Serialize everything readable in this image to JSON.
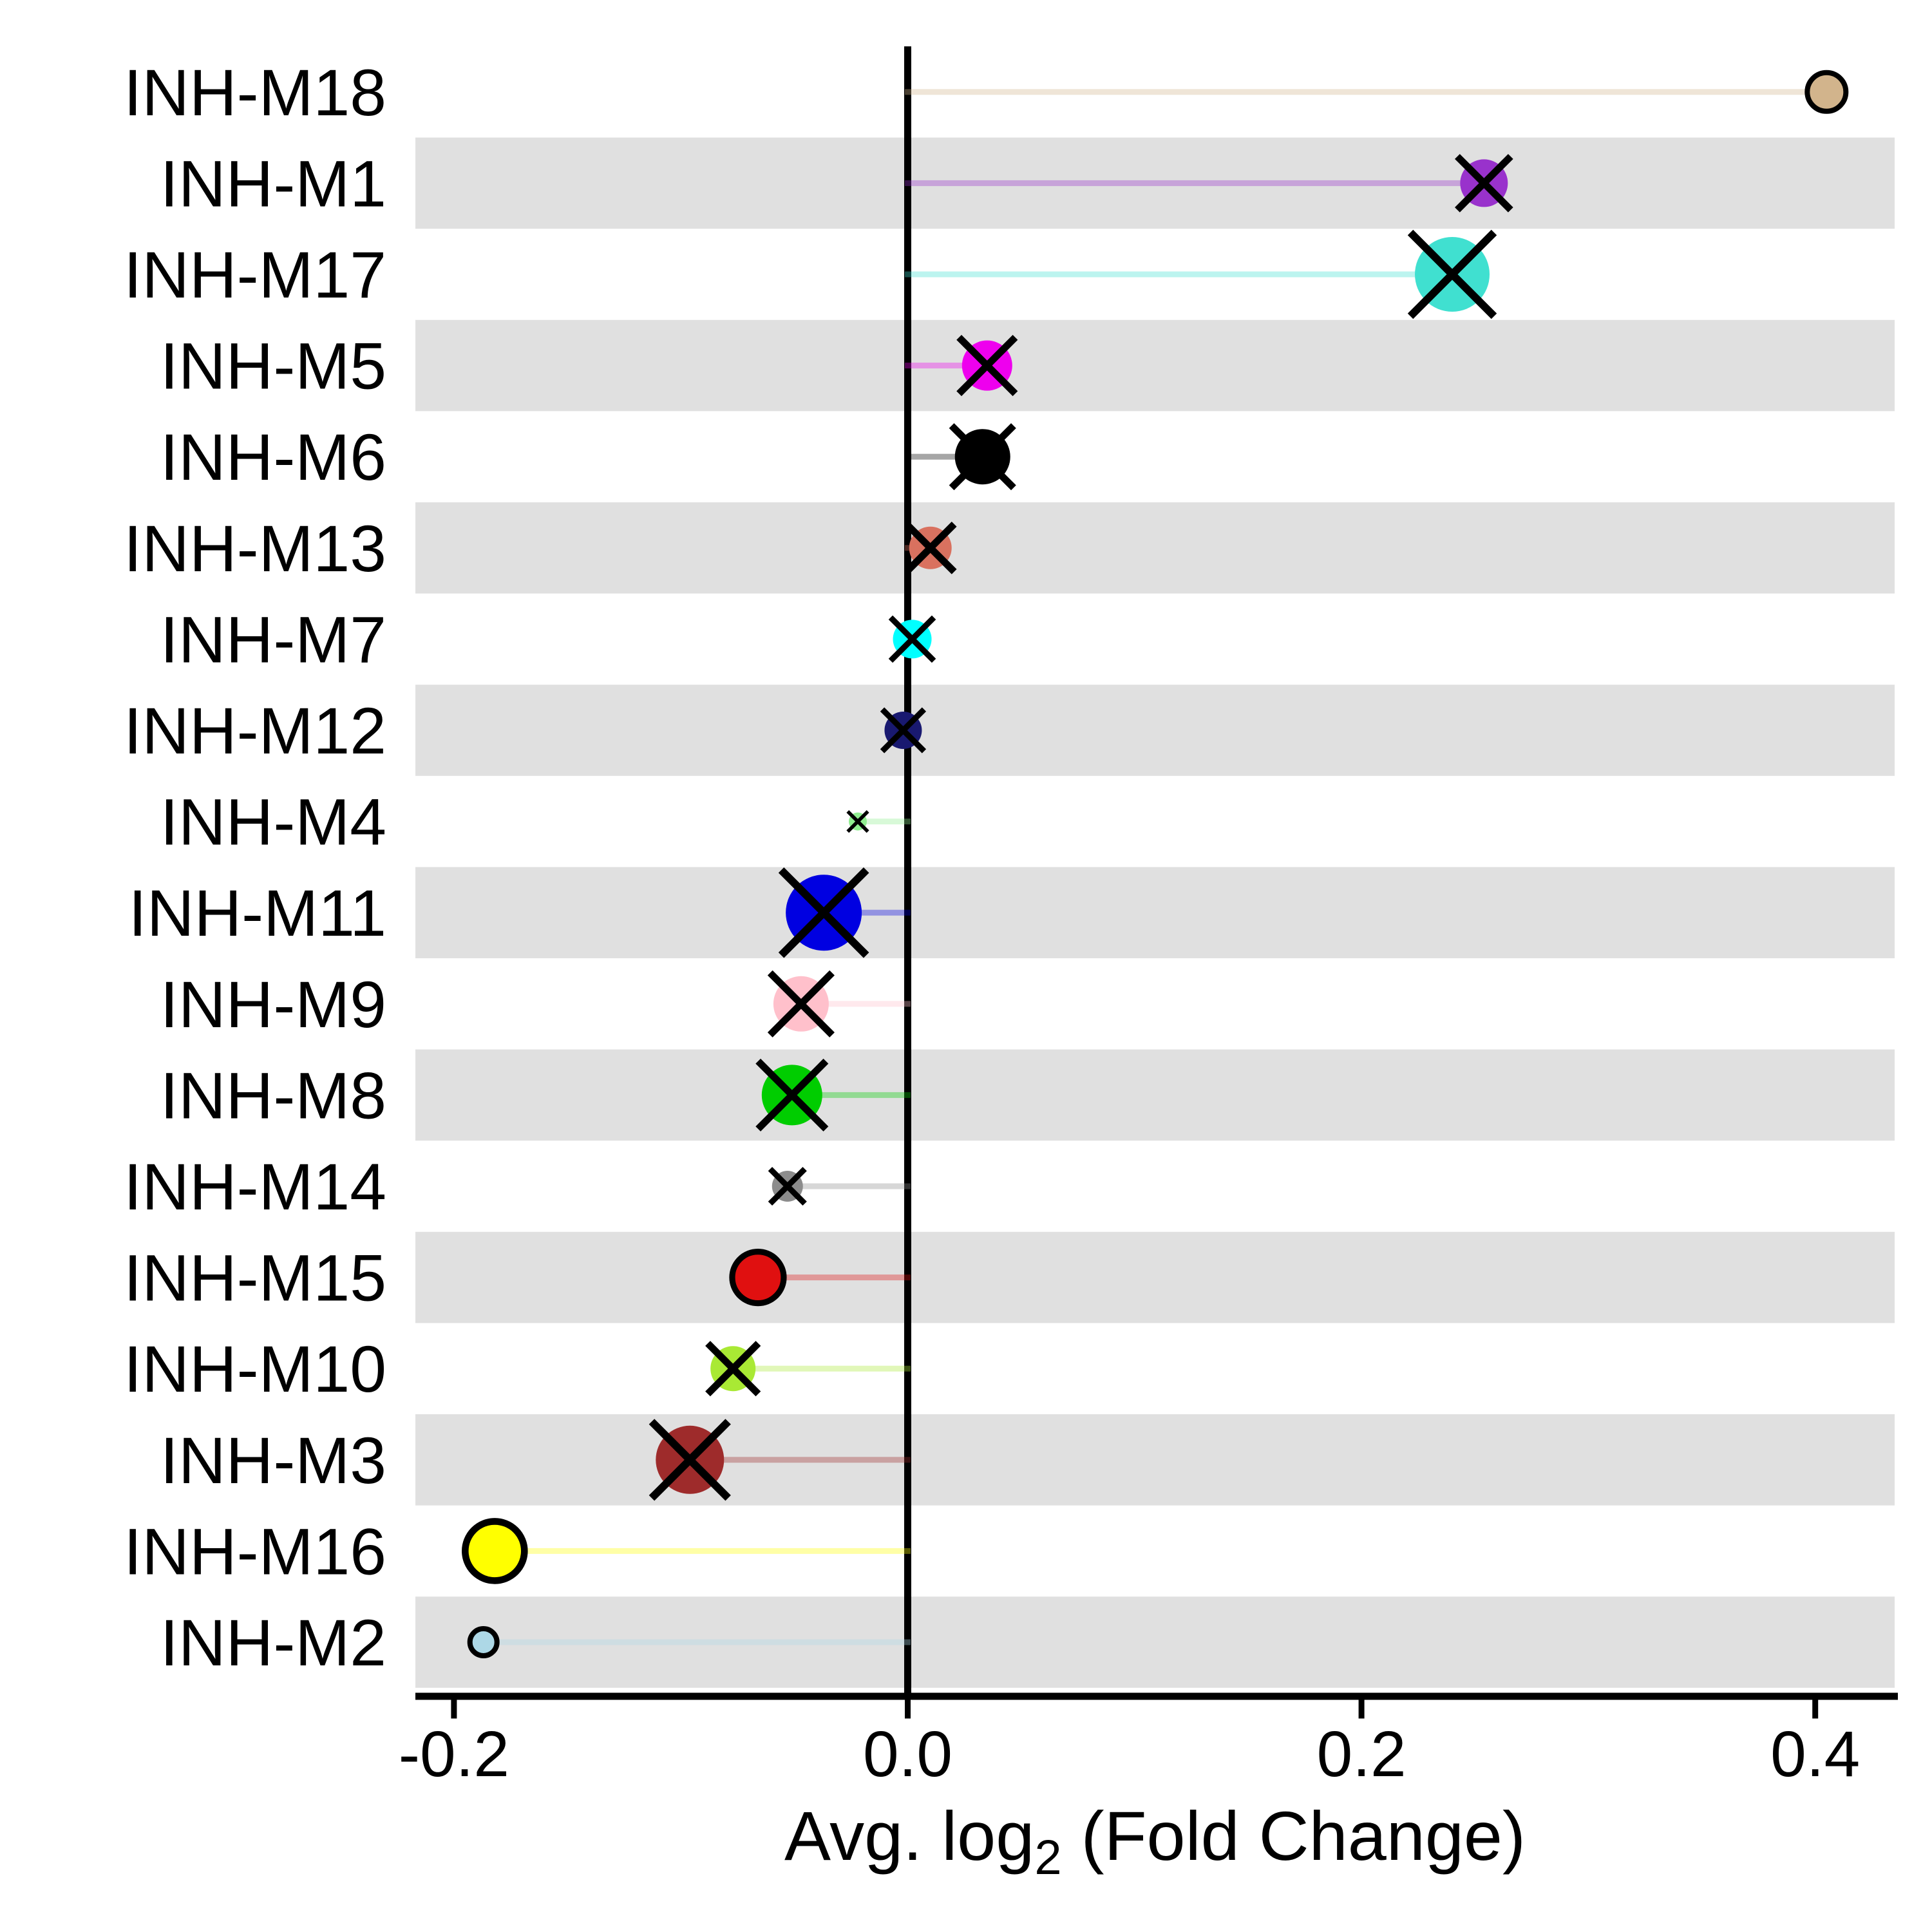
{
  "chart_data": {
    "type": "lollipop-dot",
    "title": "",
    "xlabel_parts": {
      "prefix": "Avg. log",
      "subscript": "2",
      "suffix": " (Fold Change)"
    },
    "xlim": [
      -0.217,
      0.435
    ],
    "x_ticks": [
      {
        "value": -0.2,
        "label": "-0.2"
      },
      {
        "value": 0.0,
        "label": "0.0"
      },
      {
        "value": 0.2,
        "label": "0.2"
      },
      {
        "value": 0.4,
        "label": "0.4"
      }
    ],
    "zero_line": {
      "value": 0.0,
      "color": "#000000"
    },
    "band_color": "#e0e0e0",
    "stem_alpha": 0.35,
    "legend": "none",
    "categories_note": "rows ordered top to bottom by descending value; marker 'x' = black cross over dot, 'ring' = black outlined dot",
    "rows": [
      {
        "label": "INH-M18",
        "value": 0.405,
        "color": "#d2b48c",
        "radius": 30,
        "marker": "ring"
      },
      {
        "label": "INH-M1",
        "value": 0.254,
        "color": "#9932cc",
        "radius": 37,
        "marker": "x"
      },
      {
        "label": "INH-M17",
        "value": 0.24,
        "color": "#40e0d0",
        "radius": 58,
        "marker": "x"
      },
      {
        "label": "INH-M5",
        "value": 0.035,
        "color": "#ee00ee",
        "radius": 39,
        "marker": "x"
      },
      {
        "label": "INH-M6",
        "value": 0.033,
        "color": "#000000",
        "radius": 43,
        "marker": "x"
      },
      {
        "label": "INH-M13",
        "value": 0.01,
        "color": "#d9715f",
        "radius": 33,
        "marker": "x"
      },
      {
        "label": "INH-M7",
        "value": 0.002,
        "color": "#00ffff",
        "radius": 30,
        "marker": "x"
      },
      {
        "label": "INH-M12",
        "value": -0.002,
        "color": "#191970",
        "radius": 29,
        "marker": "x"
      },
      {
        "label": "INH-M4",
        "value": -0.022,
        "color": "#90ee90",
        "radius": 14,
        "marker": "x"
      },
      {
        "label": "INH-M11",
        "value": -0.037,
        "color": "#0000e1",
        "radius": 59,
        "marker": "x"
      },
      {
        "label": "INH-M9",
        "value": -0.047,
        "color": "#ffc0cb",
        "radius": 43,
        "marker": "x"
      },
      {
        "label": "INH-M8",
        "value": -0.051,
        "color": "#00cd00",
        "radius": 47,
        "marker": "x"
      },
      {
        "label": "INH-M14",
        "value": -0.053,
        "color": "#8c8c8c",
        "radius": 24,
        "marker": "x"
      },
      {
        "label": "INH-M15",
        "value": -0.066,
        "color": "#e01010",
        "radius": 40,
        "marker": "ring"
      },
      {
        "label": "INH-M10",
        "value": -0.077,
        "color": "#a9e934",
        "radius": 35,
        "marker": "x"
      },
      {
        "label": "INH-M3",
        "value": -0.096,
        "color": "#9e2b2b",
        "radius": 53,
        "marker": "x"
      },
      {
        "label": "INH-M16",
        "value": -0.182,
        "color": "#ffff00",
        "radius": 46,
        "marker": "ring"
      },
      {
        "label": "INH-M2",
        "value": -0.187,
        "color": "#add8e6",
        "radius": 21,
        "marker": "ring"
      }
    ]
  }
}
